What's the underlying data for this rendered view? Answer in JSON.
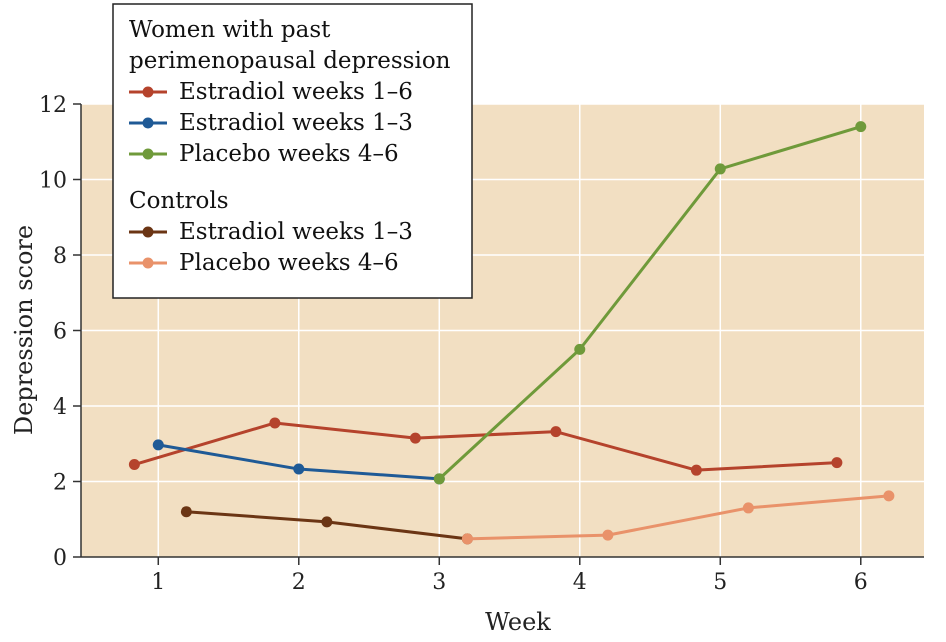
{
  "chart_data": {
    "type": "line",
    "xlabel": "Week",
    "ylabel": "Depression score",
    "xlim": [
      0.45,
      6.45
    ],
    "ylim": [
      0,
      12
    ],
    "x_ticks": [
      1,
      2,
      3,
      4,
      5,
      6
    ],
    "y_ticks": [
      0,
      2,
      4,
      6,
      8,
      10,
      12
    ],
    "grid": true,
    "legend": {
      "position": "top-left",
      "groups": [
        {
          "heading": "Women with past perimenopausal depression",
          "heading_lines": [
            "Women with past",
            "perimenopausal depression"
          ],
          "entries": [
            0,
            1,
            2
          ]
        },
        {
          "heading": "Controls",
          "heading_lines": [
            "Controls"
          ],
          "entries": [
            3,
            4
          ]
        }
      ]
    },
    "series": [
      {
        "name": "Estradiol weeks 1–6",
        "color": "#b5432c",
        "x": [
          0.83,
          1.83,
          2.83,
          3.83,
          4.83,
          5.83
        ],
        "y": [
          2.45,
          3.55,
          3.15,
          3.32,
          2.3,
          2.5
        ]
      },
      {
        "name": "Estradiol weeks 1–3",
        "color": "#1f5a96",
        "x": [
          1.0,
          2.0,
          3.0
        ],
        "y": [
          2.97,
          2.33,
          2.07
        ]
      },
      {
        "name": "Placebo weeks 4–6",
        "color": "#6f9a3a",
        "x": [
          3.0,
          4.0,
          5.0,
          6.0
        ],
        "y": [
          2.07,
          5.5,
          10.28,
          11.4
        ]
      },
      {
        "name": "Estradiol weeks 1–3",
        "color": "#6b3514",
        "x": [
          1.2,
          2.2,
          3.2
        ],
        "y": [
          1.2,
          0.93,
          0.48
        ]
      },
      {
        "name": "Placebo weeks 4–6",
        "color": "#e9926a",
        "x": [
          3.2,
          4.2,
          5.2,
          6.2
        ],
        "y": [
          0.48,
          0.58,
          1.3,
          1.62
        ]
      }
    ]
  }
}
